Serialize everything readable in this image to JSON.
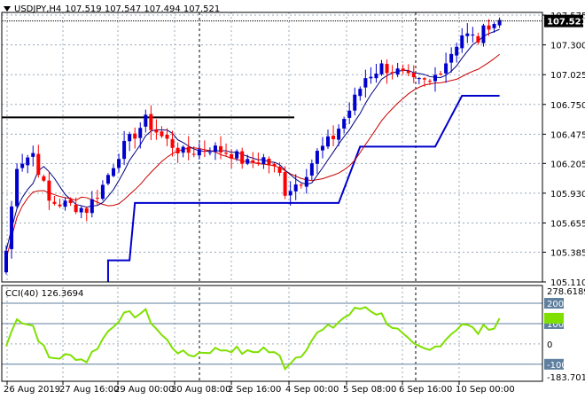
{
  "header": {
    "symbol": "USDJPY,H4",
    "ohlc": "107.519 107.547 107.494 107.521"
  },
  "current_price": "107.521",
  "price_axis": {
    "ticks": [
      "107.575",
      "107.300",
      "107.025",
      "106.750",
      "106.475",
      "106.205",
      "105.930",
      "105.655",
      "105.385",
      "105.110"
    ]
  },
  "time_axis": {
    "labels": [
      "26 Aug 2019",
      "27 Aug 16:00",
      "29 Aug 00:00",
      "30 Aug 08:00",
      "2 Sep 16:00",
      "4 Sep 00:00",
      "5 Sep 08:00",
      "6 Sep 16:00",
      "10 Sep 00:00"
    ]
  },
  "cci_panel": {
    "label": "CCI(40) 126.3694",
    "scale_max": "278.6189",
    "scale_min": "-183.701",
    "levels": [
      "200",
      "100",
      "0",
      "-100"
    ],
    "value": 126.3694
  },
  "colors": {
    "bull_candle": "#0000cd",
    "bear_candle": "#ff0000",
    "ma_black": "#000080",
    "ma_red": "#cc0000",
    "support_line": "#0000cd",
    "resistance_line": "#000000",
    "cci_line": "#7fe000",
    "cci_level_fill": "#5f7f9f",
    "price_box": "#000000"
  },
  "chart_data": {
    "type": "candlestick",
    "timeframe": "H4",
    "xlabels": [
      "26 Aug 2019",
      "27 Aug 16:00",
      "29 Aug 00:00",
      "30 Aug 08:00",
      "2 Sep 16:00",
      "4 Sep 00:00",
      "5 Sep 08:00",
      "6 Sep 16:00",
      "10 Sep 00:00"
    ],
    "ylim": [
      105.11,
      107.6
    ],
    "resistance_level": 106.63,
    "support_steps": [
      {
        "from_bar": 19,
        "to_bar": 23,
        "value": 105.31
      },
      {
        "from_bar": 24,
        "to_bar": 62,
        "value": 105.84
      },
      {
        "from_bar": 66,
        "to_bar": 80,
        "value": 106.36
      },
      {
        "from_bar": 85,
        "to_bar": 92,
        "value": 106.83
      }
    ],
    "cci_ylim": [
      -183.701,
      278.6189
    ],
    "cci_levels": [
      200,
      100,
      0,
      -100
    ]
  }
}
